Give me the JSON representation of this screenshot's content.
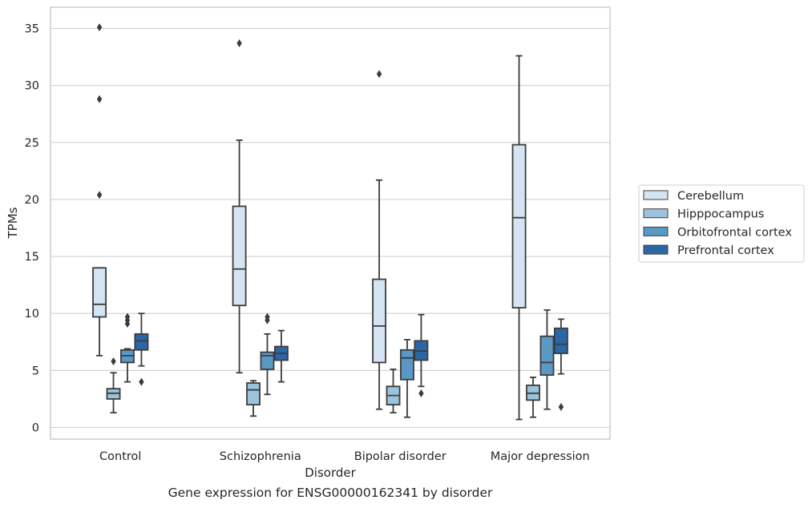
{
  "caption": "Gene expression for ENSG00000162341 by disorder",
  "chart_data": {
    "type": "box",
    "title": "",
    "xlabel": "Disorder",
    "ylabel": "TPMs",
    "ylim": [
      -1,
      37
    ],
    "yticks": [
      0,
      5,
      10,
      15,
      20,
      25,
      30,
      35
    ],
    "grid": "horizontal",
    "legend_position": "right",
    "categories": [
      "Control",
      "Schizophrenia",
      "Bipolar disorder",
      "Major depression"
    ],
    "series": [
      {
        "name": "Cerebellum",
        "color": "#d5e4f3",
        "boxes": [
          {
            "whisker_low": 6.3,
            "q1": 9.7,
            "median": 10.8,
            "q3": 14.0,
            "whisker_high": 14.0,
            "outliers": [
              20.4,
              28.8,
              35.1
            ]
          },
          {
            "whisker_low": 4.8,
            "q1": 10.7,
            "median": 13.9,
            "q3": 19.4,
            "whisker_high": 25.2,
            "outliers": [
              33.7
            ]
          },
          {
            "whisker_low": 1.6,
            "q1": 5.7,
            "median": 8.9,
            "q3": 13.0,
            "whisker_high": 21.7,
            "outliers": [
              31.0
            ]
          },
          {
            "whisker_low": 0.7,
            "q1": 10.5,
            "median": 18.4,
            "q3": 24.8,
            "whisker_high": 32.6,
            "outliers": []
          }
        ]
      },
      {
        "name": "Hipppocampus",
        "color": "#9cc3dc",
        "boxes": [
          {
            "whisker_low": 1.3,
            "q1": 2.5,
            "median": 3.0,
            "q3": 3.4,
            "whisker_high": 4.8,
            "outliers": [
              5.8
            ]
          },
          {
            "whisker_low": 1.0,
            "q1": 2.0,
            "median": 3.3,
            "q3": 3.9,
            "whisker_high": 4.1,
            "outliers": []
          },
          {
            "whisker_low": 1.3,
            "q1": 2.0,
            "median": 2.8,
            "q3": 3.6,
            "whisker_high": 5.1,
            "outliers": []
          },
          {
            "whisker_low": 0.9,
            "q1": 2.4,
            "median": 3.0,
            "q3": 3.7,
            "whisker_high": 4.4,
            "outliers": []
          }
        ]
      },
      {
        "name": "Orbitofrontal cortex",
        "color": "#5a99c6",
        "boxes": [
          {
            "whisker_low": 4.0,
            "q1": 5.7,
            "median": 6.3,
            "q3": 6.8,
            "whisker_high": 6.9,
            "outliers": [
              9.1,
              9.4,
              9.7
            ]
          },
          {
            "whisker_low": 2.9,
            "q1": 5.1,
            "median": 6.3,
            "q3": 6.6,
            "whisker_high": 8.2,
            "outliers": [
              9.4,
              9.7
            ]
          },
          {
            "whisker_low": 0.9,
            "q1": 4.2,
            "median": 6.1,
            "q3": 6.8,
            "whisker_high": 7.7,
            "outliers": []
          },
          {
            "whisker_low": 1.6,
            "q1": 4.6,
            "median": 5.7,
            "q3": 8.0,
            "whisker_high": 10.3,
            "outliers": []
          }
        ]
      },
      {
        "name": "Prefrontal cortex",
        "color": "#2b67a7",
        "boxes": [
          {
            "whisker_low": 5.4,
            "q1": 6.8,
            "median": 7.6,
            "q3": 8.2,
            "whisker_high": 10.0,
            "outliers": [
              4.0
            ]
          },
          {
            "whisker_low": 4.0,
            "q1": 5.9,
            "median": 6.5,
            "q3": 7.1,
            "whisker_high": 8.5,
            "outliers": []
          },
          {
            "whisker_low": 3.6,
            "q1": 5.9,
            "median": 6.7,
            "q3": 7.6,
            "whisker_high": 9.9,
            "outliers": [
              3.0
            ]
          },
          {
            "whisker_low": 4.7,
            "q1": 6.5,
            "median": 7.3,
            "q3": 8.7,
            "whisker_high": 9.5,
            "outliers": [
              1.8
            ]
          }
        ]
      }
    ]
  }
}
